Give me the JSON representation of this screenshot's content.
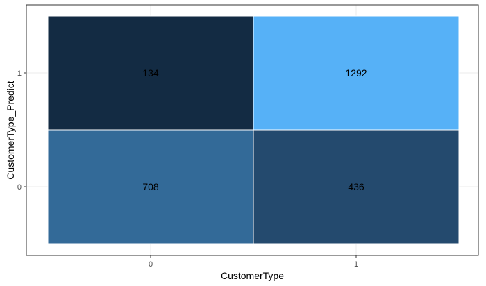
{
  "chart_data": {
    "type": "heatmap",
    "title": "",
    "xlabel": "CustomerType",
    "ylabel": "CustomerType_Predict",
    "x_categories": [
      "0",
      "1"
    ],
    "y_categories": [
      "0",
      "1"
    ],
    "cells": [
      {
        "x": "0",
        "y": "1",
        "value": 134,
        "color": "#132B43"
      },
      {
        "x": "1",
        "y": "1",
        "value": 1292,
        "color": "#56B1F7"
      },
      {
        "x": "0",
        "y": "0",
        "value": 708,
        "color": "#336A98"
      },
      {
        "x": "1",
        "y": "0",
        "value": 436,
        "color": "#244A6E"
      }
    ],
    "legend": "none",
    "grid": true
  }
}
